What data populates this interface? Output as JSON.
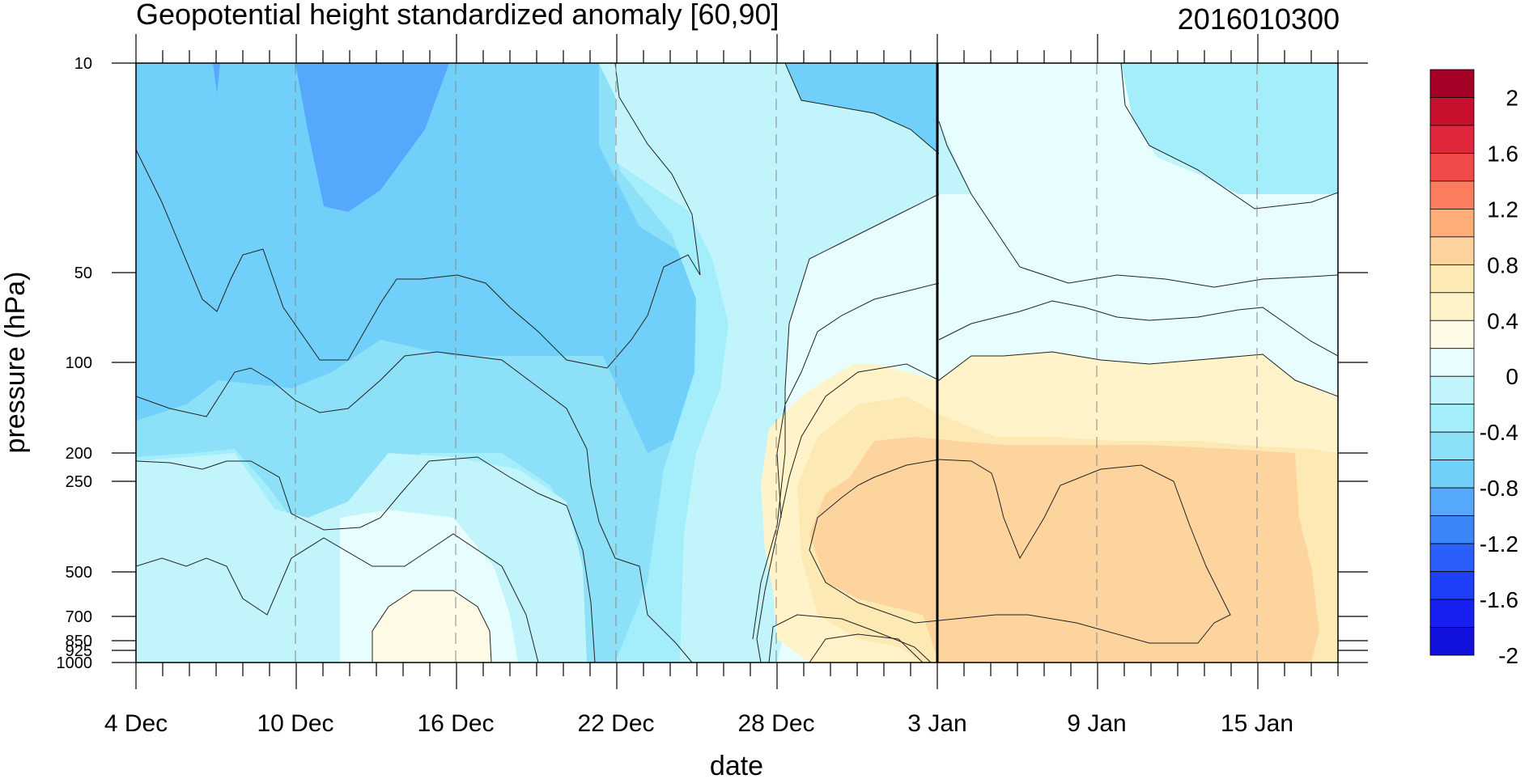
{
  "chart_data": {
    "type": "heatmap",
    "title": "Geopotential height standardized anomaly [60,90]",
    "timestamp": "2016010300",
    "xlabel": "date",
    "ylabel": "pressure (hPa)",
    "x_ticks": [
      "4 Dec",
      "10 Dec",
      "16 Dec",
      "22 Dec",
      "28 Dec",
      "3 Jan",
      "9 Jan",
      "15 Jan"
    ],
    "y_ticks": [
      "10",
      "50",
      "100",
      "200",
      "250",
      "500",
      "700",
      "850",
      "925",
      "1000"
    ],
    "y_scale": "log",
    "grid": "vertical dashed lines at labelled dates",
    "current_date_line": "3 Jan",
    "colorbar": {
      "labels": [
        "2",
        "1.6",
        "1.2",
        "0.8",
        "0.4",
        "0",
        "-0.4",
        "-0.8",
        "-1.2",
        "-1.6",
        "-2"
      ],
      "colors": [
        "#a50026",
        "#c8102e",
        "#e0263a",
        "#f04a4a",
        "#fb7d5e",
        "#fdae78",
        "#fdd49e",
        "#fde9b4",
        "#fff4c9",
        "#fffbe6",
        "#e8fdfd",
        "#c2f5fb",
        "#a4eefb",
        "#8ce0f8",
        "#70d0fa",
        "#55a8fc",
        "#3c86fc",
        "#2a5ffc",
        "#1e3ef8",
        "#1720f0",
        "#1212dc"
      ]
    },
    "contour_regions": [
      {
        "name": "upper-stratosphere-early-dec",
        "x_range": [
          "4 Dec",
          "22 Dec"
        ],
        "p_range": [
          10,
          200
        ],
        "value": -0.8
      },
      {
        "name": "strong-negative-core",
        "x_range": [
          "10 Dec",
          "16 Dec"
        ],
        "p_range": [
          10,
          35
        ],
        "value": -1.2
      },
      {
        "name": "late-dec-negative",
        "x_range": [
          "28 Dec",
          "3 Jan"
        ],
        "p_range": [
          10,
          30
        ],
        "value": -0.8
      },
      {
        "name": "low-level-weak-negative",
        "x_range": [
          "4 Dec",
          "28 Dec"
        ],
        "p_range": [
          200,
          1000
        ],
        "value": -0.4
      },
      {
        "name": "dec-15-surface-positive",
        "x_range": [
          "13 Dec",
          "17 Dec"
        ],
        "p_range": [
          600,
          1000
        ],
        "value": 0.1
      },
      {
        "name": "jan-positive-troposphere",
        "x_range": [
          "28 Dec",
          "18 Jan"
        ],
        "p_range": [
          100,
          1000
        ],
        "value": 0.6
      },
      {
        "name": "jan-strong-positive-core",
        "x_range": [
          "30 Dec",
          "17 Jan"
        ],
        "p_range": [
          180,
          800
        ],
        "value": 0.8
      },
      {
        "name": "jan-upper-neutral",
        "x_range": [
          "3 Jan",
          "18 Jan"
        ],
        "p_range": [
          10,
          100
        ],
        "value": -0.3
      }
    ]
  }
}
